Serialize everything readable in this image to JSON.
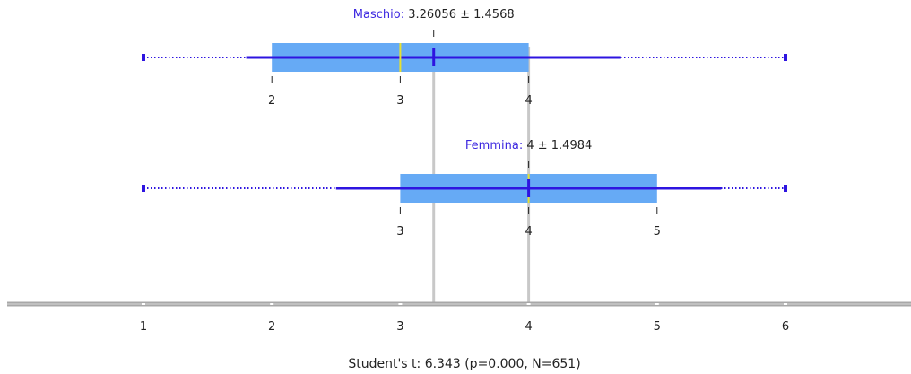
{
  "chart_data": {
    "type": "boxplot",
    "x_axis": {
      "min": 1,
      "max": 6,
      "ticks": [
        "1",
        "2",
        "3",
        "4",
        "5",
        "6"
      ]
    },
    "reference_lines": [
      3.26056,
      4
    ],
    "groups": [
      {
        "name": "Maschio",
        "value_text": "3.26056 ± 1.4568",
        "mean": 3.26056,
        "sd": 1.4568,
        "median": 3,
        "q1": 2,
        "q3": 4,
        "box_labels": [
          "2",
          "3",
          "4"
        ],
        "whisker_low": 1.8,
        "whisker_high": 4.72,
        "min": 1,
        "max": 6
      },
      {
        "name": "Femmina",
        "value_text": "4 ± 1.4984",
        "mean": 4,
        "sd": 1.4984,
        "median": 4,
        "q1": 3,
        "q3": 5,
        "box_labels": [
          "3",
          "4",
          "5"
        ],
        "whisker_low": 2.5,
        "whisker_high": 5.5,
        "min": 1,
        "max": 6
      }
    ],
    "statistic_text": "Student's t: 6.343 (p=0.000, N=651)",
    "colors": {
      "box": "#66aaf5",
      "line": "#2e14e0",
      "median": "#e8e030",
      "reference": "#c8c8c8",
      "axis": "#a8a8a8",
      "label": "#3d28e0"
    }
  }
}
